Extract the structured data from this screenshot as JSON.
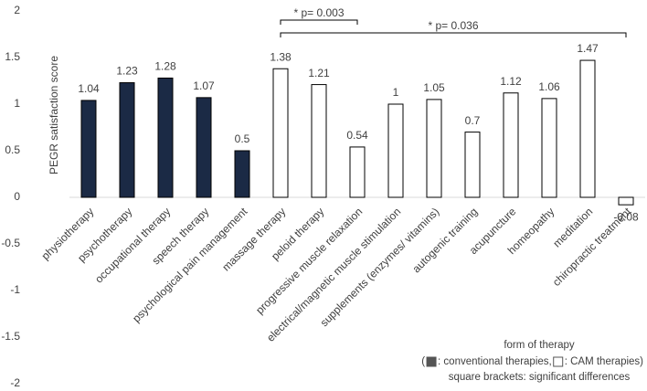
{
  "chart_data": {
    "type": "bar",
    "y_label": "PEGR satisfaction score",
    "categories": [
      "physiotherapy",
      "psychotherapy",
      "occupational therapy",
      "speech therapy",
      "psychological pain management",
      "massage therapy",
      "peloid therapy",
      "progressive muscle relaxation",
      "electrical/magnetic muscle stimulation",
      "supplements (enzymes/ vitamins)",
      "autogenic training",
      "acupuncture",
      "homeopathy",
      "meditation",
      "chiropractic treatment"
    ],
    "values": [
      1.04,
      1.23,
      1.28,
      1.07,
      0.5,
      1.38,
      1.21,
      0.54,
      1,
      1.05,
      0.7,
      1.12,
      1.06,
      1.47,
      -0.08
    ],
    "colors": [
      "#1b2a45",
      "#1b2a45",
      "#1b2a45",
      "#1b2a45",
      "#1b2a45",
      "#ffffff",
      "#ffffff",
      "#ffffff",
      "#ffffff",
      "#ffffff",
      "#ffffff",
      "#ffffff",
      "#ffffff",
      "#ffffff",
      "#ffffff"
    ],
    "ylim": [
      -2,
      2
    ],
    "yticks": [
      -2,
      -1.5,
      -1,
      -0.5,
      0,
      0.5,
      1,
      1.5,
      2
    ],
    "brackets": [
      {
        "text": "* p= 0.003",
        "from": 5,
        "to": 7
      },
      {
        "text": "* p= 0.036",
        "from": 5,
        "to": 14
      }
    ],
    "legend": {
      "title": "form of therapy",
      "pieces": [
        "(",
        ": conventional therapies, ",
        ": CAM therapies)"
      ],
      "swatches": [
        "#555555",
        "#ffffff"
      ],
      "note": "square brackets: significant differences"
    }
  }
}
